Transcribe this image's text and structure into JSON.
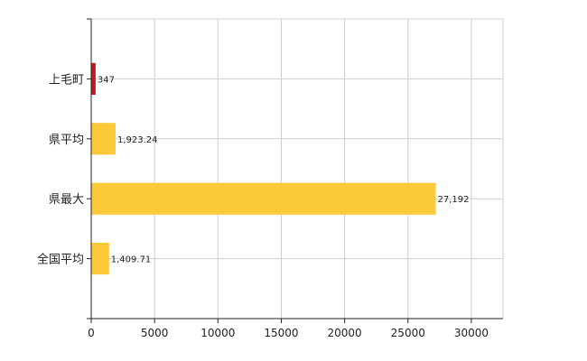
{
  "chart_data": {
    "type": "bar",
    "orientation": "horizontal",
    "categories": [
      "上毛町",
      "県平均",
      "県最大",
      "全国平均"
    ],
    "values": [
      347,
      1923.24,
      27192,
      1409.71
    ],
    "value_labels": [
      "347",
      "1,923.24",
      "27,192",
      "1,409.71"
    ],
    "bar_colors": [
      "#c8161d",
      "#fcc93a",
      "#fcc93a",
      "#fcc93a"
    ],
    "xlim": [
      0,
      32500
    ],
    "xticks": [
      0,
      5000,
      10000,
      15000,
      20000,
      25000,
      30000
    ],
    "xtick_labels": [
      "0",
      "5000",
      "10000",
      "15000",
      "20000",
      "25000",
      "30000"
    ],
    "grid": true,
    "title": "",
    "xlabel": "",
    "ylabel": ""
  }
}
